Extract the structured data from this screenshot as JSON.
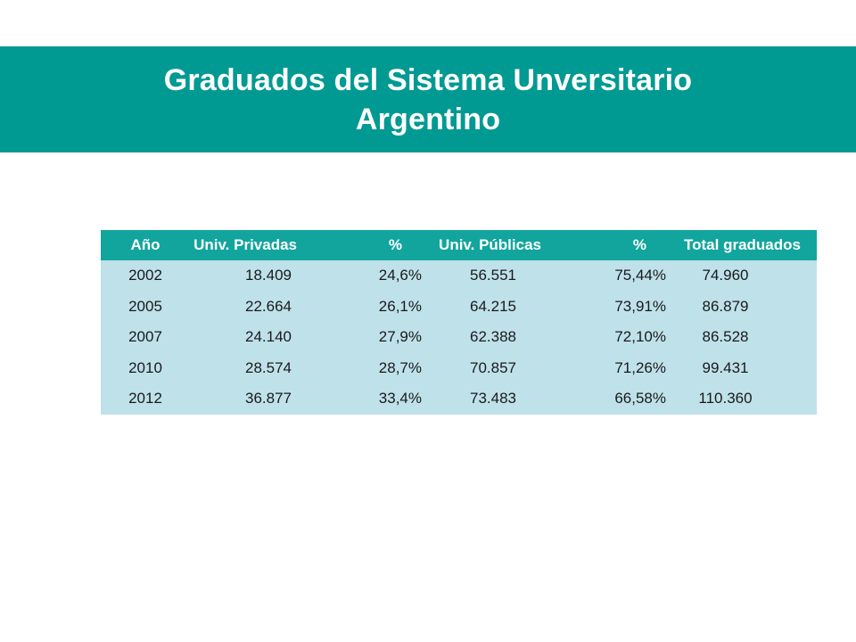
{
  "title": {
    "line1": "Graduados del Sistema Unversitario",
    "line2": "Argentino"
  },
  "colors": {
    "title_band": "#009a93",
    "header_row": "#12a59e",
    "body_rows": "#bfe1ea"
  },
  "table": {
    "headers": [
      "Año",
      "Univ. Privadas",
      "%",
      "Univ. Públicas",
      "%",
      "Total graduados"
    ],
    "rows": [
      [
        "2002",
        "18.409",
        "24,6%",
        "56.551",
        "75,44%",
        "74.960"
      ],
      [
        "2005",
        "22.664",
        "26,1%",
        "64.215",
        "73,91%",
        "86.879"
      ],
      [
        "2007",
        "24.140",
        "27,9%",
        "62.388",
        "72,10%",
        "86.528"
      ],
      [
        "2010",
        "28.574",
        "28,7%",
        "70.857",
        "71,26%",
        "99.431"
      ],
      [
        "2012",
        "36.877",
        "33,4%",
        "73.483",
        "66,58%",
        "110.360"
      ]
    ]
  }
}
